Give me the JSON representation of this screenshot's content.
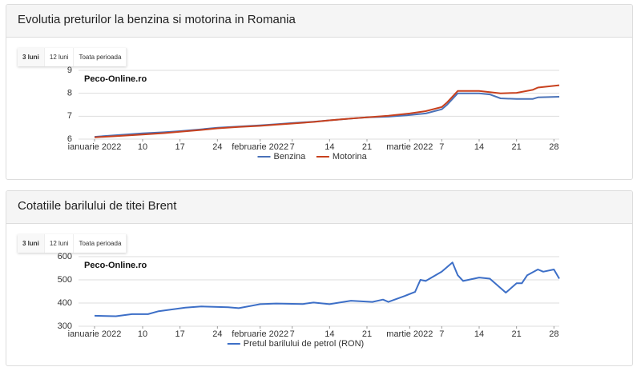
{
  "chart_data": [
    {
      "type": "line",
      "title": "Evolutia preturilor la benzina si motorina in Romania",
      "buttons": [
        "3 luni",
        "12 luni",
        "Toata perioada"
      ],
      "watermark": "Peco-Online.ro",
      "x": [
        "2022-01-01",
        "2022-01-05",
        "2022-01-10",
        "2022-01-14",
        "2022-01-17",
        "2022-01-21",
        "2022-01-24",
        "2022-01-28",
        "2022-02-01",
        "2022-02-04",
        "2022-02-07",
        "2022-02-11",
        "2022-02-14",
        "2022-02-18",
        "2022-02-21",
        "2022-02-25",
        "2022-03-01",
        "2022-03-04",
        "2022-03-07",
        "2022-03-08",
        "2022-03-10",
        "2022-03-14",
        "2022-03-16",
        "2022-03-18",
        "2022-03-21",
        "2022-03-24",
        "2022-03-25",
        "2022-03-29"
      ],
      "series": [
        {
          "name": "Benzina",
          "color": "#4a72b8",
          "values": [
            6.1,
            6.17,
            6.25,
            6.3,
            6.35,
            6.43,
            6.5,
            6.55,
            6.6,
            6.65,
            6.7,
            6.76,
            6.82,
            6.9,
            6.95,
            6.98,
            7.05,
            7.12,
            7.3,
            7.5,
            8.0,
            8.0,
            7.95,
            7.78,
            7.75,
            7.75,
            7.82,
            7.85
          ]
        },
        {
          "name": "Motorina",
          "color": "#c8411e",
          "values": [
            6.08,
            6.13,
            6.2,
            6.26,
            6.32,
            6.4,
            6.47,
            6.53,
            6.58,
            6.63,
            6.68,
            6.75,
            6.82,
            6.9,
            6.95,
            7.02,
            7.12,
            7.22,
            7.4,
            7.6,
            8.1,
            8.1,
            8.05,
            8.0,
            8.02,
            8.15,
            8.25,
            8.35
          ]
        }
      ],
      "xlim": [
        "2021-12-29",
        "2022-03-29"
      ],
      "xticks": [
        {
          "value": "2022-01-01",
          "label": "ianuarie 2022"
        },
        {
          "value": "2022-01-10",
          "label": "10"
        },
        {
          "value": "2022-01-17",
          "label": "17"
        },
        {
          "value": "2022-01-24",
          "label": "24"
        },
        {
          "value": "2022-02-01",
          "label": "februarie 2022"
        },
        {
          "value": "2022-02-07",
          "label": "7"
        },
        {
          "value": "2022-02-14",
          "label": "14"
        },
        {
          "value": "2022-02-21",
          "label": "21"
        },
        {
          "value": "2022-03-01",
          "label": "martie 2022"
        },
        {
          "value": "2022-03-07",
          "label": "7"
        },
        {
          "value": "2022-03-14",
          "label": "14"
        },
        {
          "value": "2022-03-21",
          "label": "21"
        },
        {
          "value": "2022-03-28",
          "label": "28"
        }
      ],
      "ylim": [
        6,
        9
      ],
      "yticks": [
        6,
        7,
        8,
        9
      ],
      "grid": true
    },
    {
      "type": "line",
      "title": "Cotatiile barilului de titei Brent",
      "buttons": [
        "3 luni",
        "12 luni",
        "Toata perioada"
      ],
      "watermark": "Peco-Online.ro",
      "x": [
        "2022-01-01",
        "2022-01-05",
        "2022-01-08",
        "2022-01-11",
        "2022-01-13",
        "2022-01-18",
        "2022-01-21",
        "2022-01-26",
        "2022-01-28",
        "2022-02-01",
        "2022-02-04",
        "2022-02-09",
        "2022-02-11",
        "2022-02-14",
        "2022-02-18",
        "2022-02-22",
        "2022-02-24",
        "2022-02-25",
        "2022-02-28",
        "2022-03-02",
        "2022-03-03",
        "2022-03-04",
        "2022-03-07",
        "2022-03-09",
        "2022-03-10",
        "2022-03-11",
        "2022-03-14",
        "2022-03-16",
        "2022-03-19",
        "2022-03-21",
        "2022-03-22",
        "2022-03-23",
        "2022-03-25",
        "2022-03-26",
        "2022-03-28",
        "2022-03-29"
      ],
      "series": [
        {
          "name": "Pretul barilului de petrol (RON)",
          "color": "#3d6fc7",
          "values": [
            345,
            343,
            352,
            352,
            365,
            380,
            385,
            382,
            378,
            395,
            398,
            396,
            402,
            395,
            410,
            405,
            415,
            405,
            430,
            448,
            500,
            495,
            535,
            575,
            520,
            495,
            510,
            505,
            445,
            485,
            485,
            520,
            545,
            535,
            545,
            505
          ]
        }
      ],
      "xlim": [
        "2021-12-29",
        "2022-03-29"
      ],
      "xticks": [
        {
          "value": "2022-01-01",
          "label": "ianuarie 2022"
        },
        {
          "value": "2022-01-10",
          "label": "10"
        },
        {
          "value": "2022-01-17",
          "label": "17"
        },
        {
          "value": "2022-01-24",
          "label": "24"
        },
        {
          "value": "2022-02-01",
          "label": "februarie 2022"
        },
        {
          "value": "2022-02-07",
          "label": "7"
        },
        {
          "value": "2022-02-14",
          "label": "14"
        },
        {
          "value": "2022-02-21",
          "label": "21"
        },
        {
          "value": "2022-03-01",
          "label": "martie 2022"
        },
        {
          "value": "2022-03-07",
          "label": "7"
        },
        {
          "value": "2022-03-14",
          "label": "14"
        },
        {
          "value": "2022-03-21",
          "label": "21"
        },
        {
          "value": "2022-03-28",
          "label": "28"
        }
      ],
      "ylim": [
        300,
        600
      ],
      "yticks": [
        300,
        400,
        500,
        600
      ],
      "grid": true
    }
  ]
}
